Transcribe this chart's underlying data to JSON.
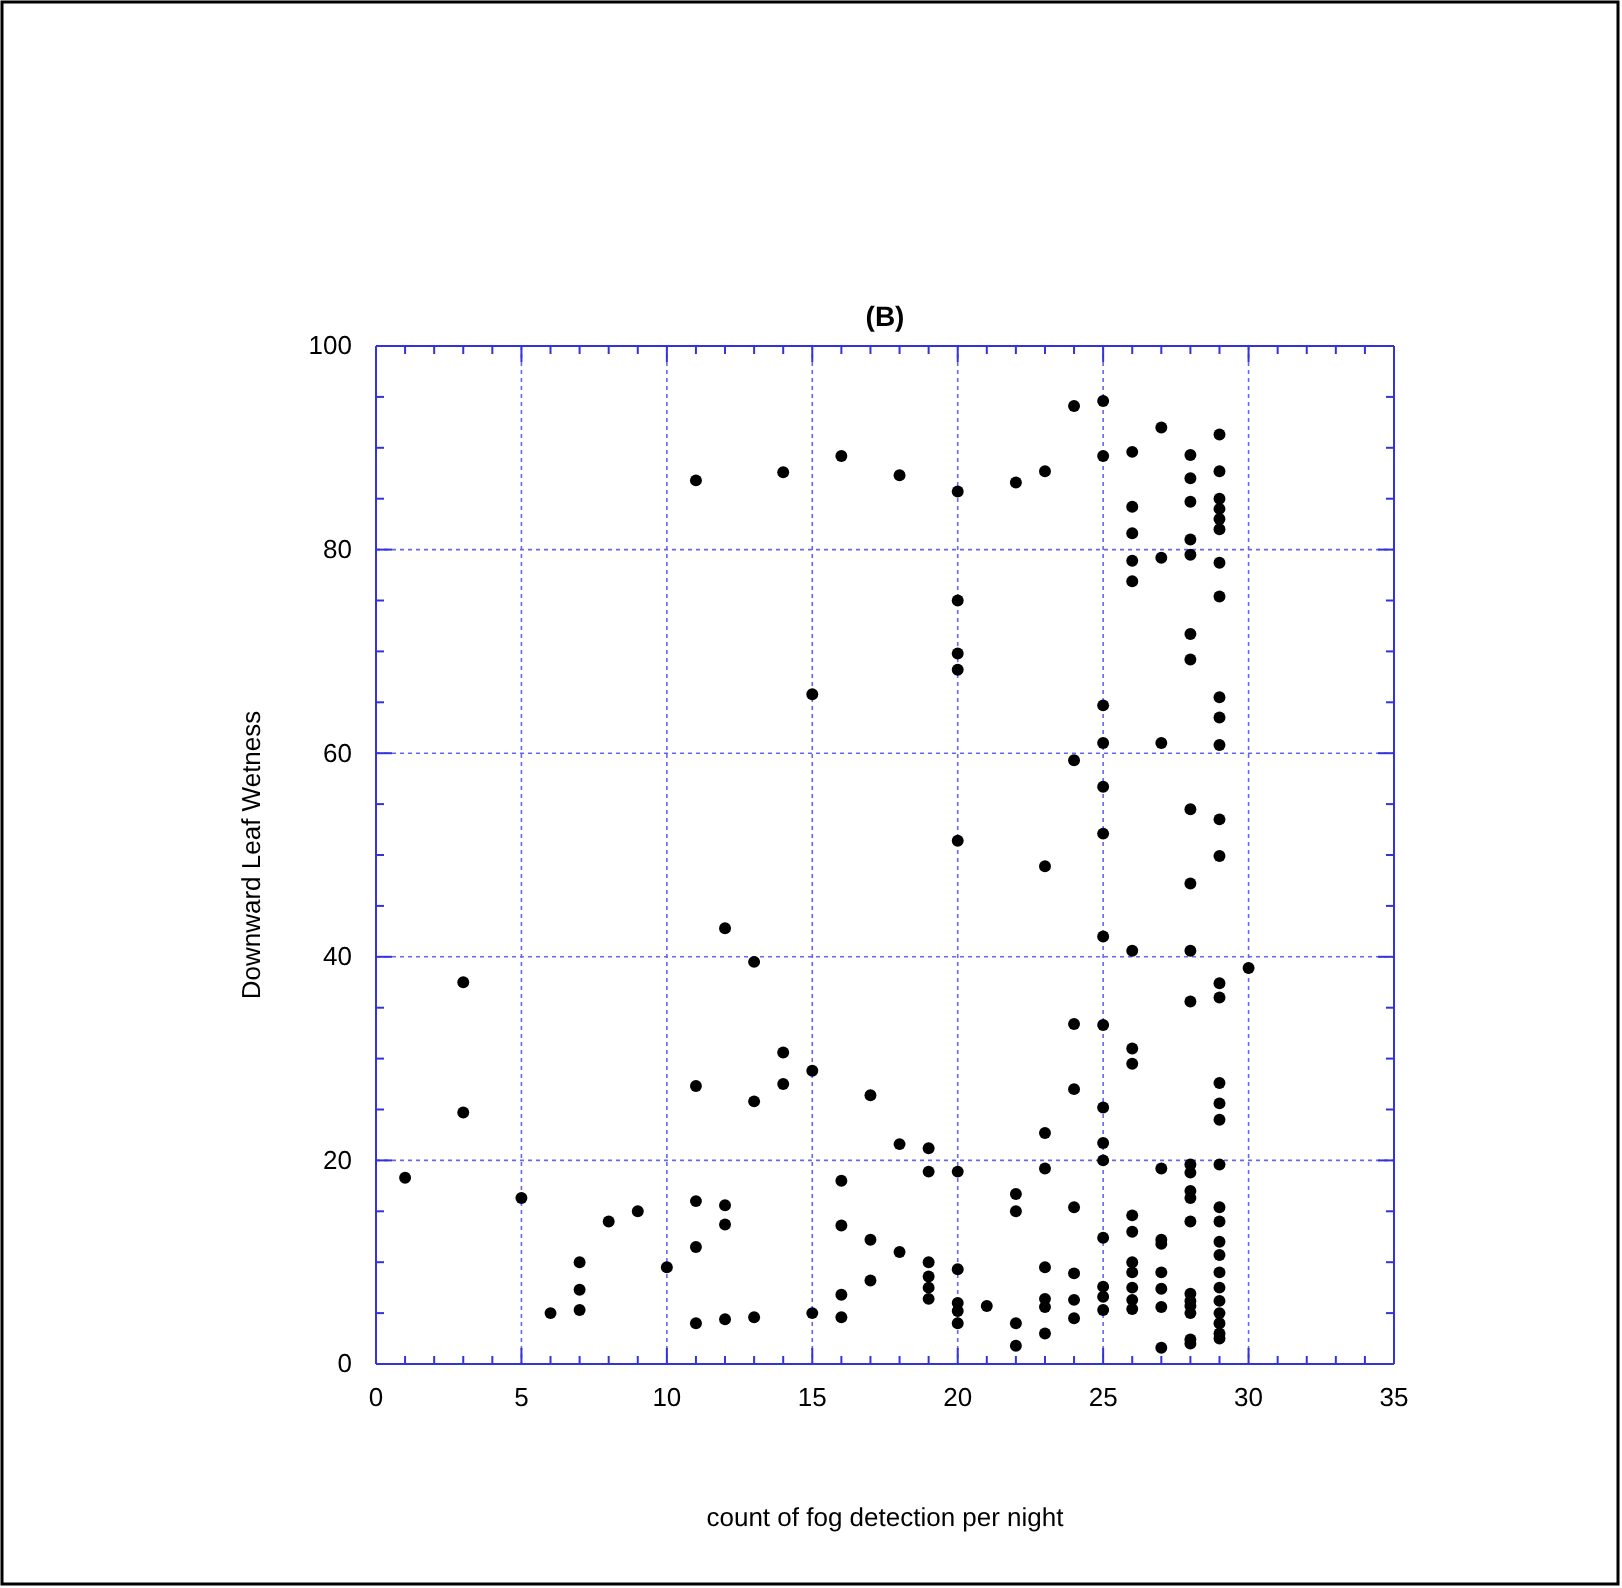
{
  "chart_data": {
    "type": "scatter",
    "title": "(B)",
    "xlabel": "count of fog detection per night",
    "ylabel": "Downward Leaf Wetness",
    "xlim": [
      0,
      35
    ],
    "xticks": [
      0,
      5,
      10,
      15,
      20,
      25,
      30,
      35
    ],
    "ylim": [
      0,
      100
    ],
    "yticks": [
      0,
      20,
      40,
      60,
      80,
      100
    ],
    "grid": true,
    "marker": "circle",
    "series": [
      {
        "color": "#000000",
        "x": [
          1,
          3,
          3,
          5,
          6,
          7,
          7,
          7,
          8,
          9,
          10,
          11,
          11,
          11,
          11,
          11,
          12,
          12,
          12,
          12,
          13,
          13,
          13,
          14,
          14,
          14,
          15,
          15,
          15,
          16,
          16,
          16,
          16,
          16,
          17,
          17,
          17,
          18,
          18,
          18,
          19,
          19,
          19,
          19,
          19,
          19,
          20,
          20,
          20,
          20,
          20,
          20,
          20,
          20,
          20,
          20,
          21,
          22,
          22,
          22,
          22,
          22,
          23,
          23,
          23,
          23,
          23,
          23,
          23,
          23,
          24,
          24,
          24,
          24,
          24,
          24,
          24,
          24,
          25,
          25,
          25,
          25,
          25,
          25,
          25,
          25,
          25,
          25,
          25,
          25,
          25,
          25,
          25,
          26,
          26,
          26,
          26,
          26,
          26,
          26,
          26,
          26,
          26,
          26,
          26,
          26,
          26,
          26,
          27,
          27,
          27,
          27,
          27,
          27,
          27,
          27,
          27,
          27,
          28,
          28,
          28,
          28,
          28,
          28,
          28,
          28,
          28,
          28,
          28,
          28,
          28,
          28,
          28,
          28,
          28,
          28,
          28,
          28,
          28,
          28,
          29,
          29,
          29,
          29,
          29,
          29,
          29,
          29,
          29,
          29,
          29,
          29,
          29,
          29,
          29,
          29,
          29,
          29,
          29,
          29,
          29,
          29,
          29,
          29,
          29,
          29,
          29,
          29,
          29,
          29,
          30
        ],
        "values": [
          18.3,
          37.5,
          24.7,
          16.3,
          5,
          10,
          7.3,
          5.3,
          14,
          15,
          9.5,
          86.8,
          27.3,
          16,
          11.5,
          4,
          42.8,
          15.6,
          13.7,
          4.4,
          39.5,
          25.8,
          4.6,
          87.6,
          30.6,
          27.5,
          65.8,
          28.8,
          5,
          89.2,
          18,
          13.6,
          6.8,
          4.6,
          26.4,
          12.2,
          8.2,
          87.3,
          21.6,
          11,
          21.2,
          18.9,
          10,
          8.6,
          7.5,
          6.4,
          85.7,
          75,
          69.8,
          68.2,
          51.4,
          18.9,
          9.3,
          6,
          5.2,
          4,
          5.7,
          86.6,
          16.7,
          15,
          4,
          1.8,
          87.7,
          48.9,
          22.7,
          19.2,
          9.5,
          6.4,
          5.6,
          3,
          94.1,
          59.3,
          33.4,
          27,
          15.4,
          8.9,
          6.3,
          4.5,
          94.6,
          89.2,
          64.7,
          61,
          56.7,
          52.1,
          42,
          33.3,
          25.2,
          21.7,
          20,
          12.4,
          7.6,
          6.6,
          5.3,
          89.6,
          84.2,
          81.6,
          78.9,
          76.9,
          40.6,
          31,
          29.5,
          14.6,
          13,
          10,
          9,
          7.5,
          6.3,
          5.4,
          92,
          79.2,
          61,
          19.2,
          12.2,
          11.8,
          9,
          7.4,
          5.6,
          1.6,
          89.3,
          87,
          84.7,
          81,
          79.5,
          71.7,
          69.2,
          54.5,
          47.2,
          40.6,
          35.6,
          19.6,
          18.8,
          17,
          16.3,
          14,
          6.9,
          6.2,
          5.7,
          5,
          2.4,
          2,
          91.3,
          87.7,
          85,
          84,
          83,
          82,
          78.7,
          75.4,
          65.5,
          63.5,
          60.8,
          53.5,
          49.9,
          37.4,
          36,
          27.6,
          25.6,
          24,
          19.6,
          15.4,
          14,
          12,
          10.7,
          9,
          7.5,
          6.2,
          5,
          4,
          3,
          2.5,
          38.9
        ]
      }
    ]
  }
}
